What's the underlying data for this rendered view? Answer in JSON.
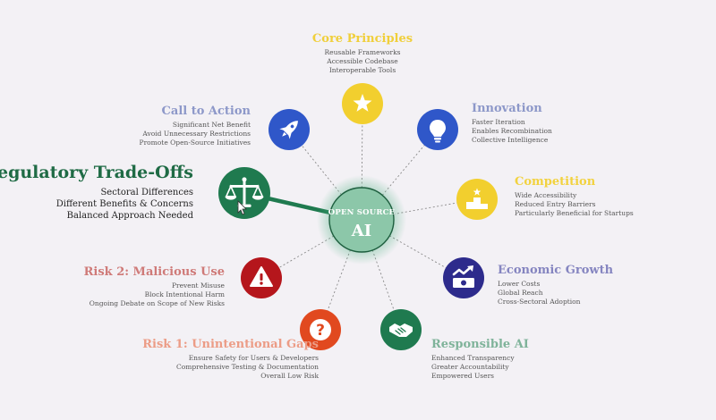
{
  "hub": {
    "top": "OPEN SOURCE",
    "main": "AI"
  },
  "nodes": [
    {
      "id": "core",
      "title": "Core Principles",
      "color": "#f2cf2e",
      "title_color": "#f0cf3a",
      "icon": "star-icon",
      "items": [
        "Reusable Frameworks",
        "Accessible Codebase",
        "Interoperable Tools"
      ]
    },
    {
      "id": "innovation",
      "title": "Innovation",
      "color": "#2f57c9",
      "title_color": "#8d98c9",
      "icon": "lightbulb-icon",
      "items": [
        "Faster Iteration",
        "Enables Recombination",
        "Collective Intelligence"
      ]
    },
    {
      "id": "competition",
      "title": "Competition",
      "color": "#f2cf2e",
      "title_color": "#f2d23f",
      "icon": "podium-icon",
      "items": [
        "Wide Accessibility",
        "Reduced Entry Barriers",
        "Particularly Beneficial for Startups"
      ]
    },
    {
      "id": "economic",
      "title": "Economic Growth",
      "color": "#2d2b8c",
      "title_color": "#8585c0",
      "icon": "money-growth-icon",
      "items": [
        "Lower Costs",
        "Global Reach",
        "Cross-Sectoral Adoption"
      ]
    },
    {
      "id": "responsible",
      "title": "Responsible AI",
      "color": "#1f7a4f",
      "title_color": "#7fb39a",
      "icon": "handshake-icon",
      "items": [
        "Enhanced Transparency",
        "Greater Accountability",
        "Empowered Users"
      ]
    },
    {
      "id": "risk1",
      "title": "Risk 1: Unintentional Gaps",
      "color": "#e1491f",
      "title_color": "#ec9c86",
      "icon": "question-icon",
      "items": [
        "Ensure Safety for Users & Developers",
        "Comprehensive Testing & Documentation",
        "Overall Low Risk"
      ]
    },
    {
      "id": "risk2",
      "title": "Risk 2: Malicious Use",
      "color": "#b5161c",
      "title_color": "#cf7a78",
      "icon": "warning-icon",
      "items": [
        "Prevent Misuse",
        "Block Intentional Harm",
        "Ongoing Debate on Scope of New Risks"
      ]
    },
    {
      "id": "regulatory",
      "title": "Regulatory Trade-Offs",
      "color": "#1f7a4f",
      "title_color": "#1f6b45",
      "icon": "scales-icon",
      "items": [
        "Sectoral Differences",
        "Different Benefits & Concerns",
        "Balanced Approach Needed"
      ]
    },
    {
      "id": "cta",
      "title": "Call to Action",
      "color": "#2f57c9",
      "title_color": "#8d98c9",
      "icon": "rocket-icon",
      "items": [
        "Significant Net Benefit",
        "Avoid Unnecessary Restrictions",
        "Promote Open-Source Initiatives"
      ]
    }
  ]
}
